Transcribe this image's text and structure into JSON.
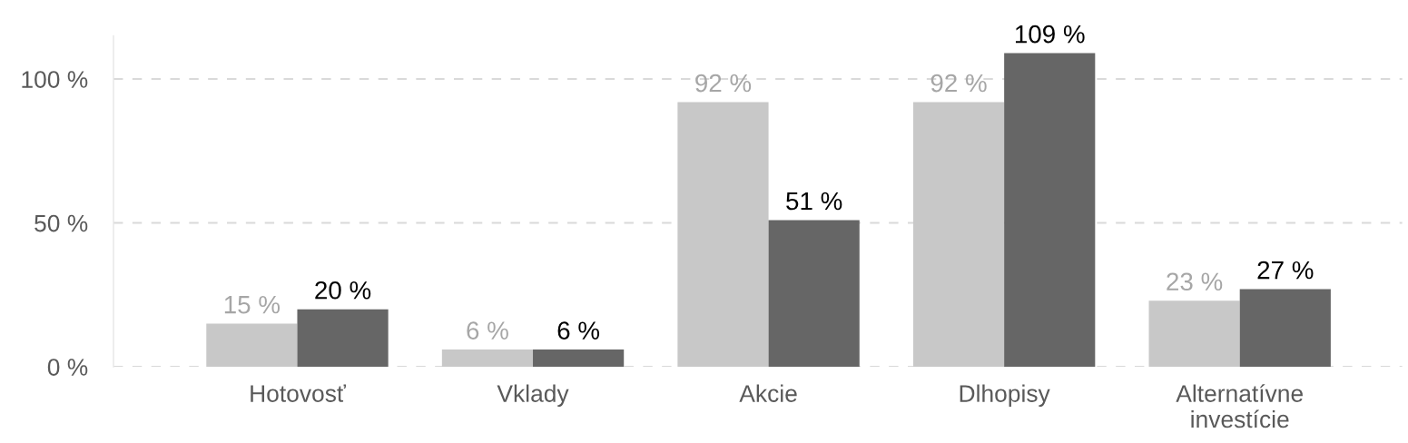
{
  "chart_data": {
    "type": "bar",
    "categories": [
      "Hotovosť",
      "Vklady",
      "Akcie",
      "Dlhopisy",
      "Alternatívne\ninvestície"
    ],
    "series": [
      {
        "color": "#c8c8c8",
        "values": [
          15,
          6,
          92,
          92,
          23
        ],
        "value_labels": [
          "15 %",
          "6 %",
          "92 %",
          "92 %",
          "23 %"
        ]
      },
      {
        "color": "#666666",
        "values": [
          20,
          6,
          51,
          109,
          27
        ],
        "value_labels": [
          "20 %",
          "6 %",
          "51 %",
          "109 %",
          "27 %"
        ]
      }
    ],
    "ylim": [
      0,
      115
    ],
    "yticks": [
      {
        "value": 0,
        "label": "0 %"
      },
      {
        "value": 50,
        "label": "50 %"
      },
      {
        "value": 100,
        "label": "100 %"
      }
    ],
    "grid": "y",
    "legend": false
  }
}
